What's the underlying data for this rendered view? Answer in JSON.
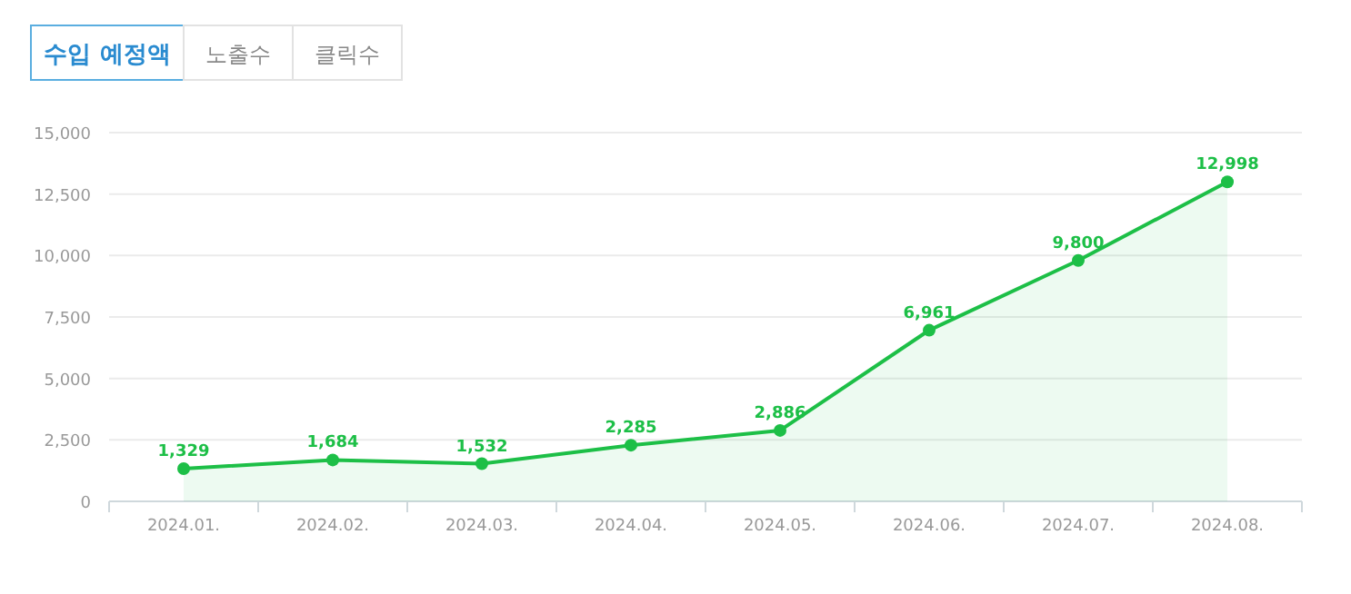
{
  "chart_data": {
    "type": "area",
    "annotations": [
      "수입 예정액",
      "노출수",
      "클릭수"
    ],
    "categories": [
      "2024.01.",
      "2024.02.",
      "2024.03.",
      "2024.04.",
      "2024.05.",
      "2024.06.",
      "2024.07.",
      "2024.08."
    ],
    "series": [
      {
        "color": "#1dbf47",
        "values": [
          1329,
          1684,
          1532,
          2285,
          2886,
          6961,
          9800,
          12998
        ],
        "value_labels": [
          "1,329",
          "1,684",
          "1,532",
          "2,285",
          "2,886",
          "6,961",
          "9,800",
          "12,998"
        ]
      }
    ],
    "ylim": [
      0,
      15000
    ],
    "yticks": [
      {
        "value": 0,
        "label": "0"
      },
      {
        "value": 2500,
        "label": "2,500"
      },
      {
        "value": 5000,
        "label": "5,000"
      },
      {
        "value": 7500,
        "label": "7,500"
      },
      {
        "value": 10000,
        "label": "10,000"
      },
      {
        "value": 12500,
        "label": "12,500"
      },
      {
        "value": 15000,
        "label": "15,000"
      }
    ],
    "grid": "y",
    "marker": "circle"
  }
}
